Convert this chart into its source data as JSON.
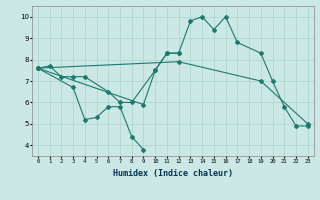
{
  "xlabel": "Humidex (Indice chaleur)",
  "background_color": "#cce8e4",
  "grid_color": "#aad4cc",
  "line_color": "#1a7a6e",
  "xlim": [
    -0.5,
    23.5
  ],
  "ylim": [
    3.5,
    10.5
  ],
  "yticks": [
    4,
    5,
    6,
    7,
    8,
    9,
    10
  ],
  "series1_x": [
    0,
    1,
    2,
    3,
    4,
    6,
    7,
    8,
    10,
    11,
    12
  ],
  "series1_y": [
    7.6,
    7.7,
    7.2,
    7.2,
    7.2,
    6.5,
    6.0,
    6.0,
    7.5,
    8.3,
    8.3
  ],
  "series2_x": [
    0,
    3,
    4,
    5,
    6,
    7,
    8,
    9
  ],
  "series2_y": [
    7.6,
    6.7,
    5.2,
    5.3,
    5.8,
    5.8,
    4.4,
    3.8
  ],
  "series3_x": [
    0,
    9,
    10,
    11,
    12,
    13,
    14,
    15,
    16,
    17,
    19,
    20,
    21,
    22,
    23
  ],
  "series3_y": [
    7.6,
    5.9,
    7.5,
    8.3,
    8.3,
    9.8,
    10.0,
    9.4,
    10.0,
    8.8,
    8.3,
    7.0,
    5.8,
    4.9,
    4.9
  ],
  "series4_x": [
    0,
    12,
    19,
    23
  ],
  "series4_y": [
    7.6,
    7.9,
    7.0,
    5.0
  ]
}
